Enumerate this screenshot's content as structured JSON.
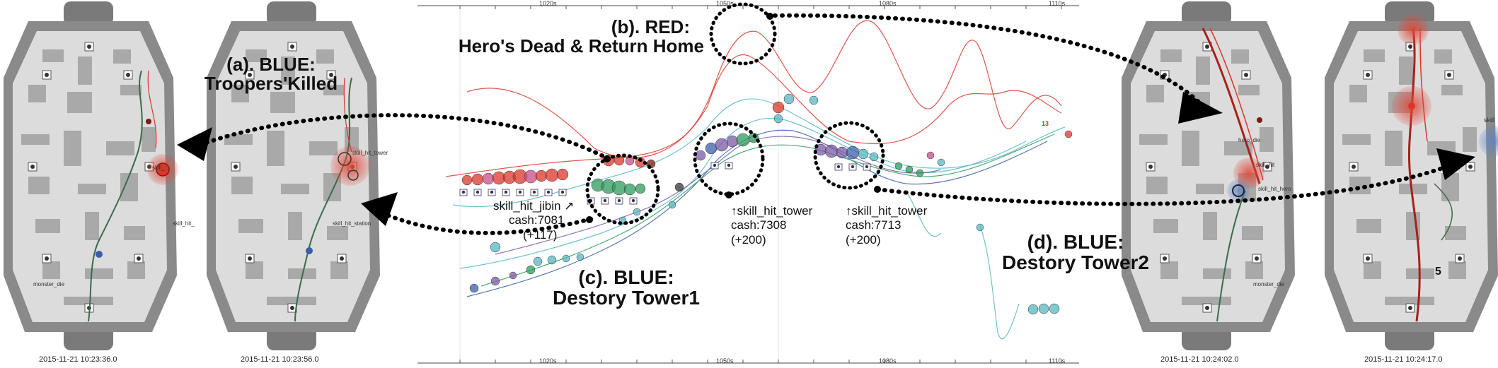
{
  "panels": [
    {
      "id": "panel1",
      "timestamp": "2015-11-21 10:23:36.0",
      "labels": [
        "skill_",
        "skill_hit_",
        "monster_die"
      ]
    },
    {
      "id": "panel2",
      "timestamp": "2015-11-21 10:23:56.0",
      "labels": [
        "skill_hit_tower",
        "skill_hit_station"
      ]
    },
    {
      "id": "panel3",
      "timestamp": "2015-11-21 10:24:02.0",
      "labels": [
        "hero_die",
        "skill_hit",
        "skill_hit_hero",
        "monster_die"
      ]
    },
    {
      "id": "panel4",
      "timestamp": "2015-11-21 10:24:17.0",
      "labels": [
        "skill",
        "5"
      ]
    }
  ],
  "timeline": {
    "ticks": [
      "1020s",
      "1050s",
      "1080s",
      "1110s"
    ],
    "annotations": {
      "a": {
        "line1": "(a). BLUE:",
        "line2": "Troopers'Killed"
      },
      "b": {
        "line1": "(b). RED:",
        "line2": "Hero's Dead & Return Home"
      },
      "c": {
        "line1": "(c). BLUE:",
        "line2": "Destory Tower1"
      },
      "d": {
        "line1": "(d). BLUE:",
        "line2": "Destory Tower2"
      }
    },
    "events": [
      {
        "name": "skill_hit_jibin",
        "cash": "cash:7081",
        "delta": "(+117)"
      },
      {
        "name": "skill_hit_tower",
        "cash": "cash:7308",
        "delta": "(+200)"
      },
      {
        "name": "skill_hit_tower",
        "cash": "cash:7713",
        "delta": "(+200)"
      }
    ],
    "small_marks": [
      "13"
    ]
  },
  "colors": {
    "red": "#d9372b",
    "blue": "#3a5fa8",
    "green": "#2e9b5c",
    "teal": "#57b6c2",
    "purple": "#7b5aa6",
    "map_bg": "#dcdcdc",
    "map_frame": "#8a8a8a"
  }
}
